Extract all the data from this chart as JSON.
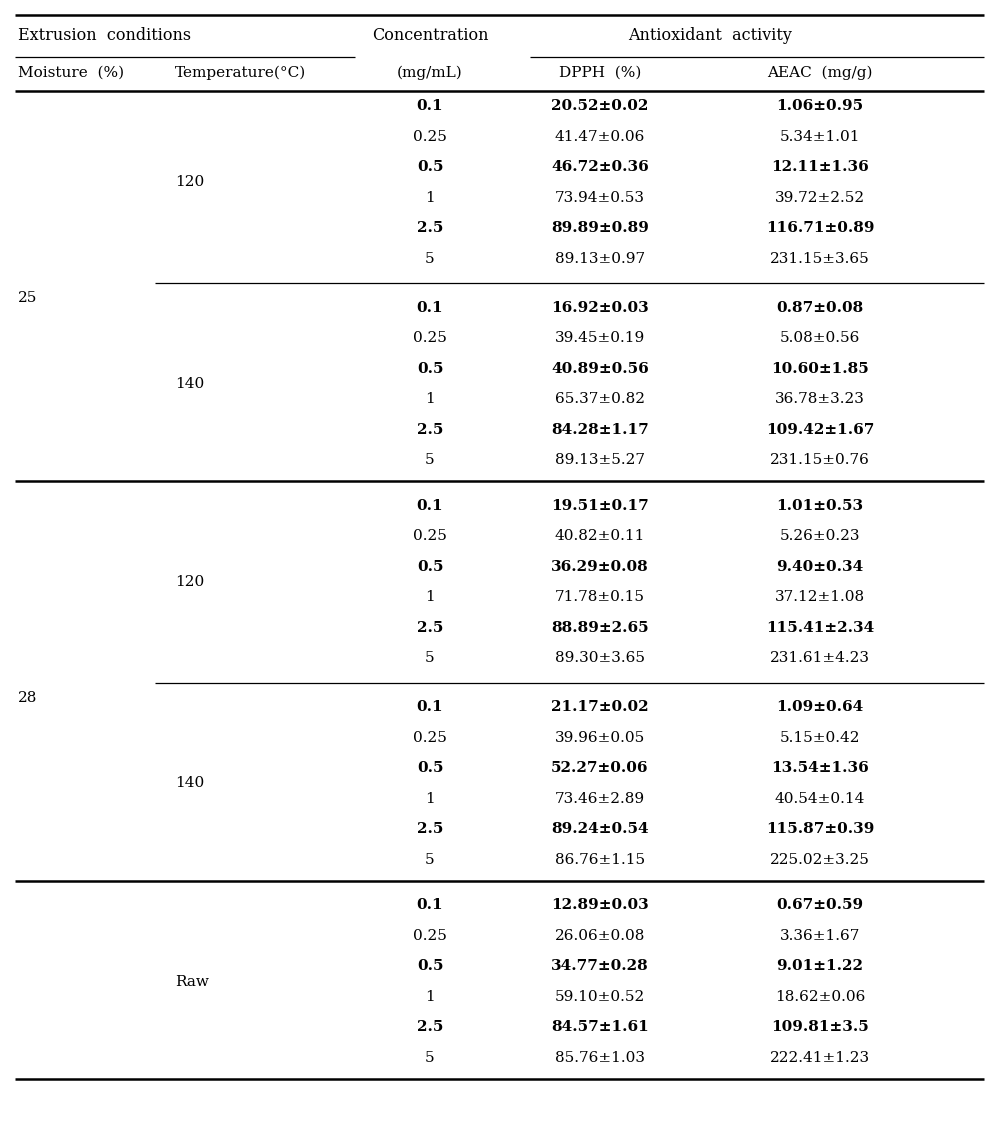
{
  "sections": [
    {
      "moisture": "25",
      "groups": [
        {
          "temperature": "120",
          "rows": [
            {
              "conc": "0.1",
              "bold_conc": true,
              "dpph": "20.52±0.02",
              "aeac": "1.06±0.95",
              "bold": true
            },
            {
              "conc": "0.25",
              "bold_conc": false,
              "dpph": "41.47±0.06",
              "aeac": "5.34±1.01",
              "bold": false
            },
            {
              "conc": "0.5",
              "bold_conc": true,
              "dpph": "46.72±0.36",
              "aeac": "12.11±1.36",
              "bold": true
            },
            {
              "conc": "1",
              "bold_conc": false,
              "dpph": "73.94±0.53",
              "aeac": "39.72±2.52",
              "bold": false
            },
            {
              "conc": "2.5",
              "bold_conc": true,
              "dpph": "89.89±0.89",
              "aeac": "116.71±0.89",
              "bold": true
            },
            {
              "conc": "5",
              "bold_conc": false,
              "dpph": "89.13±0.97",
              "aeac": "231.15±3.65",
              "bold": false
            }
          ]
        },
        {
          "temperature": "140",
          "rows": [
            {
              "conc": "0.1",
              "bold_conc": true,
              "dpph": "16.92±0.03",
              "aeac": "0.87±0.08",
              "bold": true
            },
            {
              "conc": "0.25",
              "bold_conc": false,
              "dpph": "39.45±0.19",
              "aeac": "5.08±0.56",
              "bold": false
            },
            {
              "conc": "0.5",
              "bold_conc": true,
              "dpph": "40.89±0.56",
              "aeac": "10.60±1.85",
              "bold": true
            },
            {
              "conc": "1",
              "bold_conc": false,
              "dpph": "65.37±0.82",
              "aeac": "36.78±3.23",
              "bold": false
            },
            {
              "conc": "2.5",
              "bold_conc": true,
              "dpph": "84.28±1.17",
              "aeac": "109.42±1.67",
              "bold": true
            },
            {
              "conc": "5",
              "bold_conc": false,
              "dpph": "89.13±5.27",
              "aeac": "231.15±0.76",
              "bold": false
            }
          ]
        }
      ]
    },
    {
      "moisture": "28",
      "groups": [
        {
          "temperature": "120",
          "rows": [
            {
              "conc": "0.1",
              "bold_conc": true,
              "dpph": "19.51±0.17",
              "aeac": "1.01±0.53",
              "bold": true
            },
            {
              "conc": "0.25",
              "bold_conc": false,
              "dpph": "40.82±0.11",
              "aeac": "5.26±0.23",
              "bold": false
            },
            {
              "conc": "0.5",
              "bold_conc": true,
              "dpph": "36.29±0.08",
              "aeac": "9.40±0.34",
              "bold": true
            },
            {
              "conc": "1",
              "bold_conc": false,
              "dpph": "71.78±0.15",
              "aeac": "37.12±1.08",
              "bold": false
            },
            {
              "conc": "2.5",
              "bold_conc": true,
              "dpph": "88.89±2.65",
              "aeac": "115.41±2.34",
              "bold": true
            },
            {
              "conc": "5",
              "bold_conc": false,
              "dpph": "89.30±3.65",
              "aeac": "231.61±4.23",
              "bold": false
            }
          ]
        },
        {
          "temperature": "140",
          "rows": [
            {
              "conc": "0.1",
              "bold_conc": true,
              "dpph": "21.17±0.02",
              "aeac": "1.09±0.64",
              "bold": true
            },
            {
              "conc": "0.25",
              "bold_conc": false,
              "dpph": "39.96±0.05",
              "aeac": "5.15±0.42",
              "bold": false
            },
            {
              "conc": "0.5",
              "bold_conc": true,
              "dpph": "52.27±0.06",
              "aeac": "13.54±1.36",
              "bold": true
            },
            {
              "conc": "1",
              "bold_conc": false,
              "dpph": "73.46±2.89",
              "aeac": "40.54±0.14",
              "bold": false
            },
            {
              "conc": "2.5",
              "bold_conc": true,
              "dpph": "89.24±0.54",
              "aeac": "115.87±0.39",
              "bold": true
            },
            {
              "conc": "5",
              "bold_conc": false,
              "dpph": "86.76±1.15",
              "aeac": "225.02±3.25",
              "bold": false
            }
          ]
        }
      ]
    }
  ],
  "raw_section": {
    "temperature": "Raw",
    "rows": [
      {
        "conc": "0.1",
        "bold_conc": true,
        "dpph": "12.89±0.03",
        "aeac": "0.67±0.59",
        "bold": true
      },
      {
        "conc": "0.25",
        "bold_conc": false,
        "dpph": "26.06±0.08",
        "aeac": "3.36±1.67",
        "bold": false
      },
      {
        "conc": "0.5",
        "bold_conc": true,
        "dpph": "34.77±0.28",
        "aeac": "9.01±1.22",
        "bold": true
      },
      {
        "conc": "1",
        "bold_conc": false,
        "dpph": "59.10±0.52",
        "aeac": "18.62±0.06",
        "bold": false
      },
      {
        "conc": "2.5",
        "bold_conc": true,
        "dpph": "84.57±1.61",
        "aeac": "109.81±3.5",
        "bold": true
      },
      {
        "conc": "5",
        "bold_conc": false,
        "dpph": "85.76±1.03",
        "aeac": "222.41±1.23",
        "bold": false
      }
    ]
  },
  "font_size": 11.0,
  "header_font_size": 11.5,
  "lw_thick": 1.8,
  "lw_thin": 0.9
}
